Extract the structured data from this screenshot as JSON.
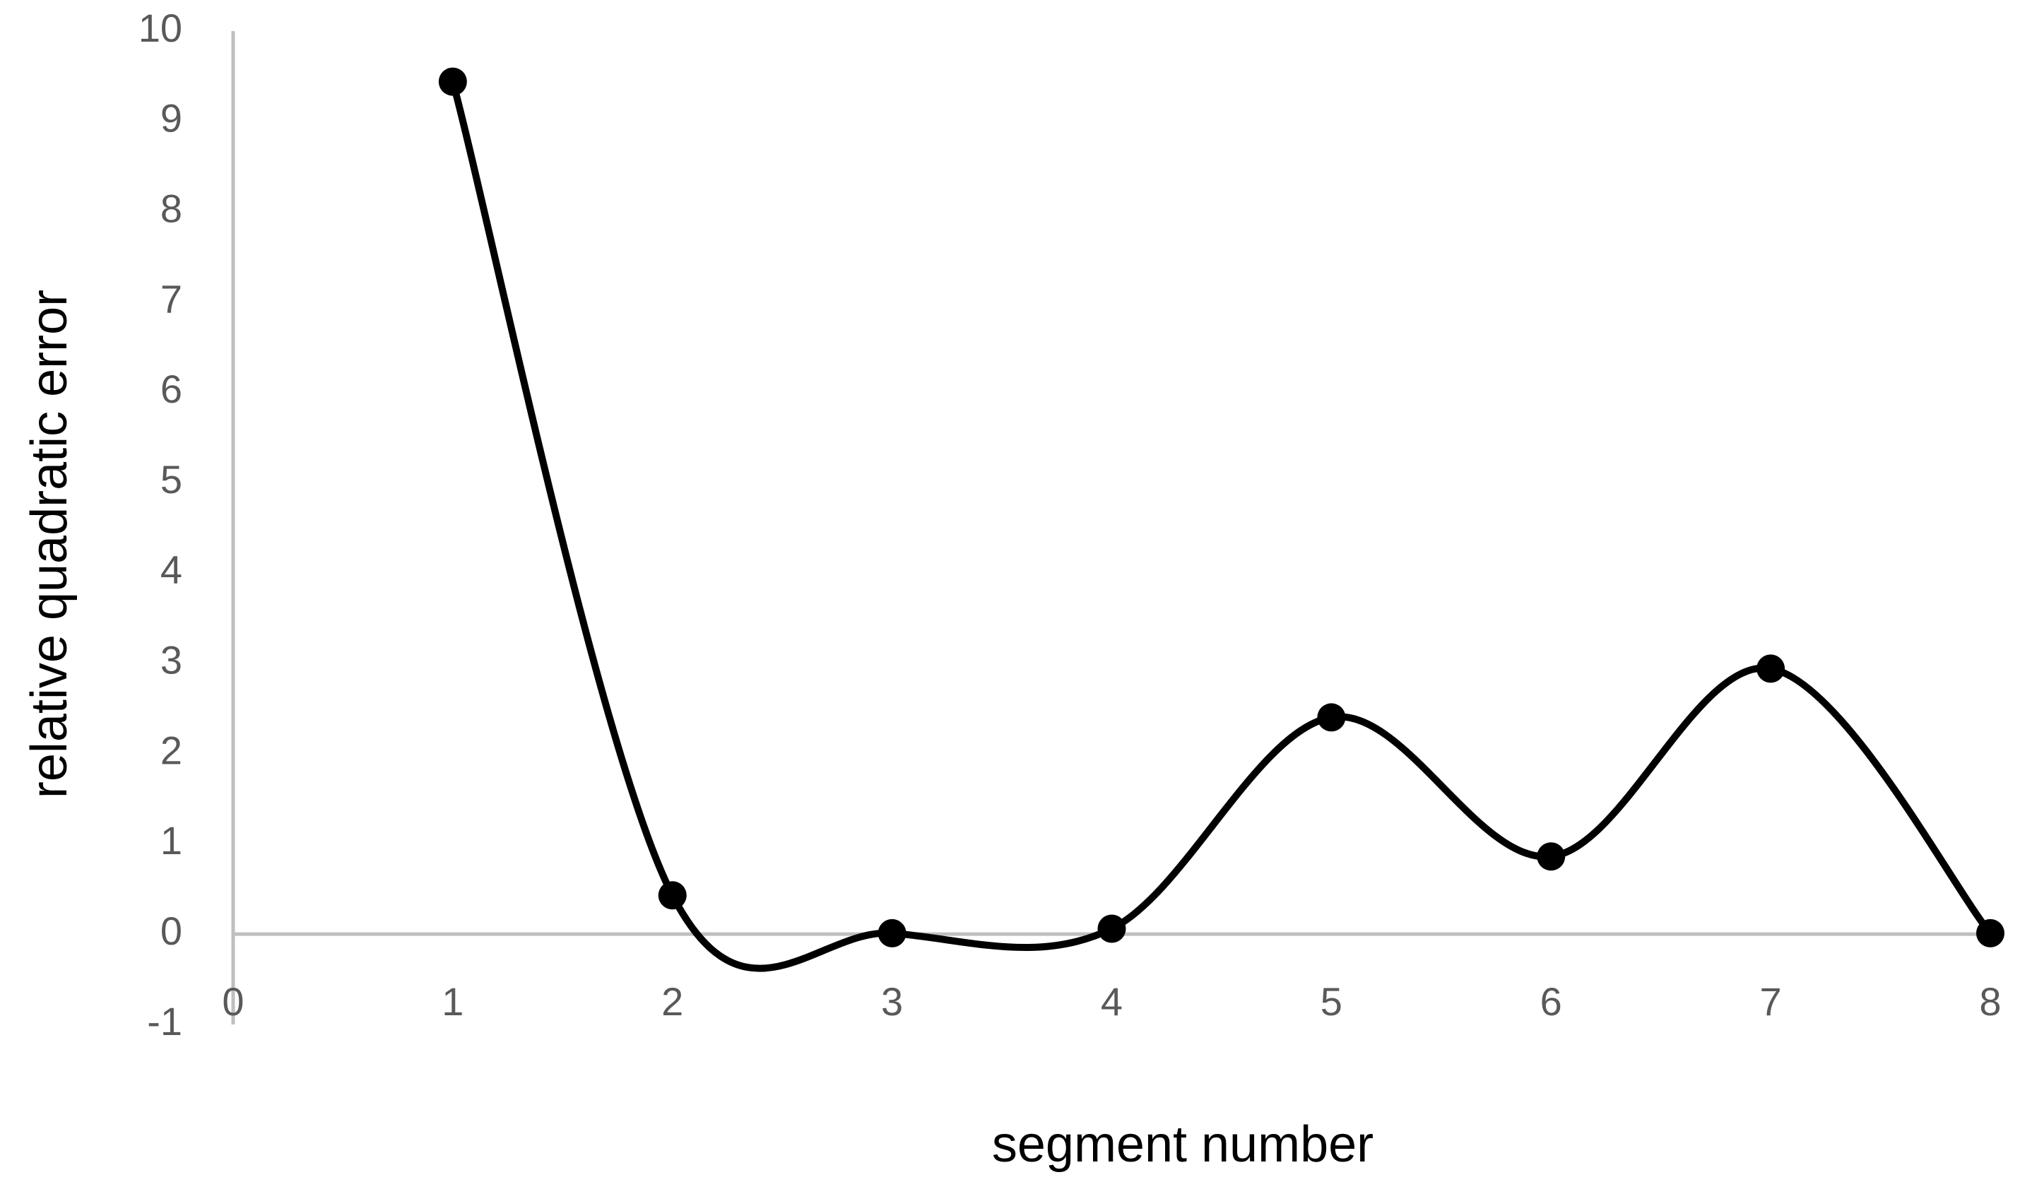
{
  "chart_data": {
    "type": "line",
    "smooth": true,
    "x_label": "segment number",
    "y_label": "relative quadratic error",
    "x": [
      1,
      2,
      3,
      4,
      5,
      6,
      7,
      8
    ],
    "series": [
      {
        "color": "#000000",
        "values": [
          9.44,
          0.43,
          0.01,
          0.06,
          2.4,
          0.86,
          2.94,
          0.01
        ]
      }
    ],
    "xlim": [
      0,
      8
    ],
    "xticks": [
      0,
      1,
      2,
      3,
      4,
      5,
      6,
      7,
      8
    ],
    "ylim": [
      -1,
      10
    ],
    "yticks": [
      -1,
      0,
      1,
      2,
      3,
      4,
      5,
      6,
      7,
      8,
      9,
      10
    ],
    "grid": false,
    "markers": true
  }
}
